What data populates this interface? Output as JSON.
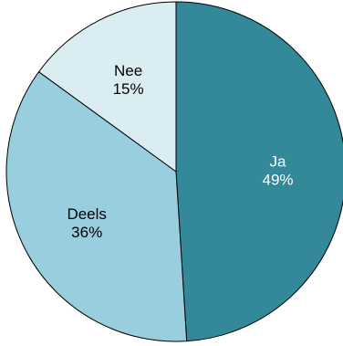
{
  "chart_data": {
    "type": "pie",
    "title": "",
    "start_angle_deg": 0,
    "direction": "clockwise",
    "slices": [
      {
        "label": "Ja",
        "value": 49,
        "percent_label": "49%",
        "color": "#338899",
        "label_color": "#ffffff"
      },
      {
        "label": "Deels",
        "value": 36,
        "percent_label": "36%",
        "color": "#99cedf",
        "label_color": "#000000"
      },
      {
        "label": "Nee",
        "value": 15,
        "percent_label": "15%",
        "color": "#daedf3",
        "label_color": "#000000"
      }
    ],
    "slice_border_color": "#000000",
    "legend": "none"
  }
}
